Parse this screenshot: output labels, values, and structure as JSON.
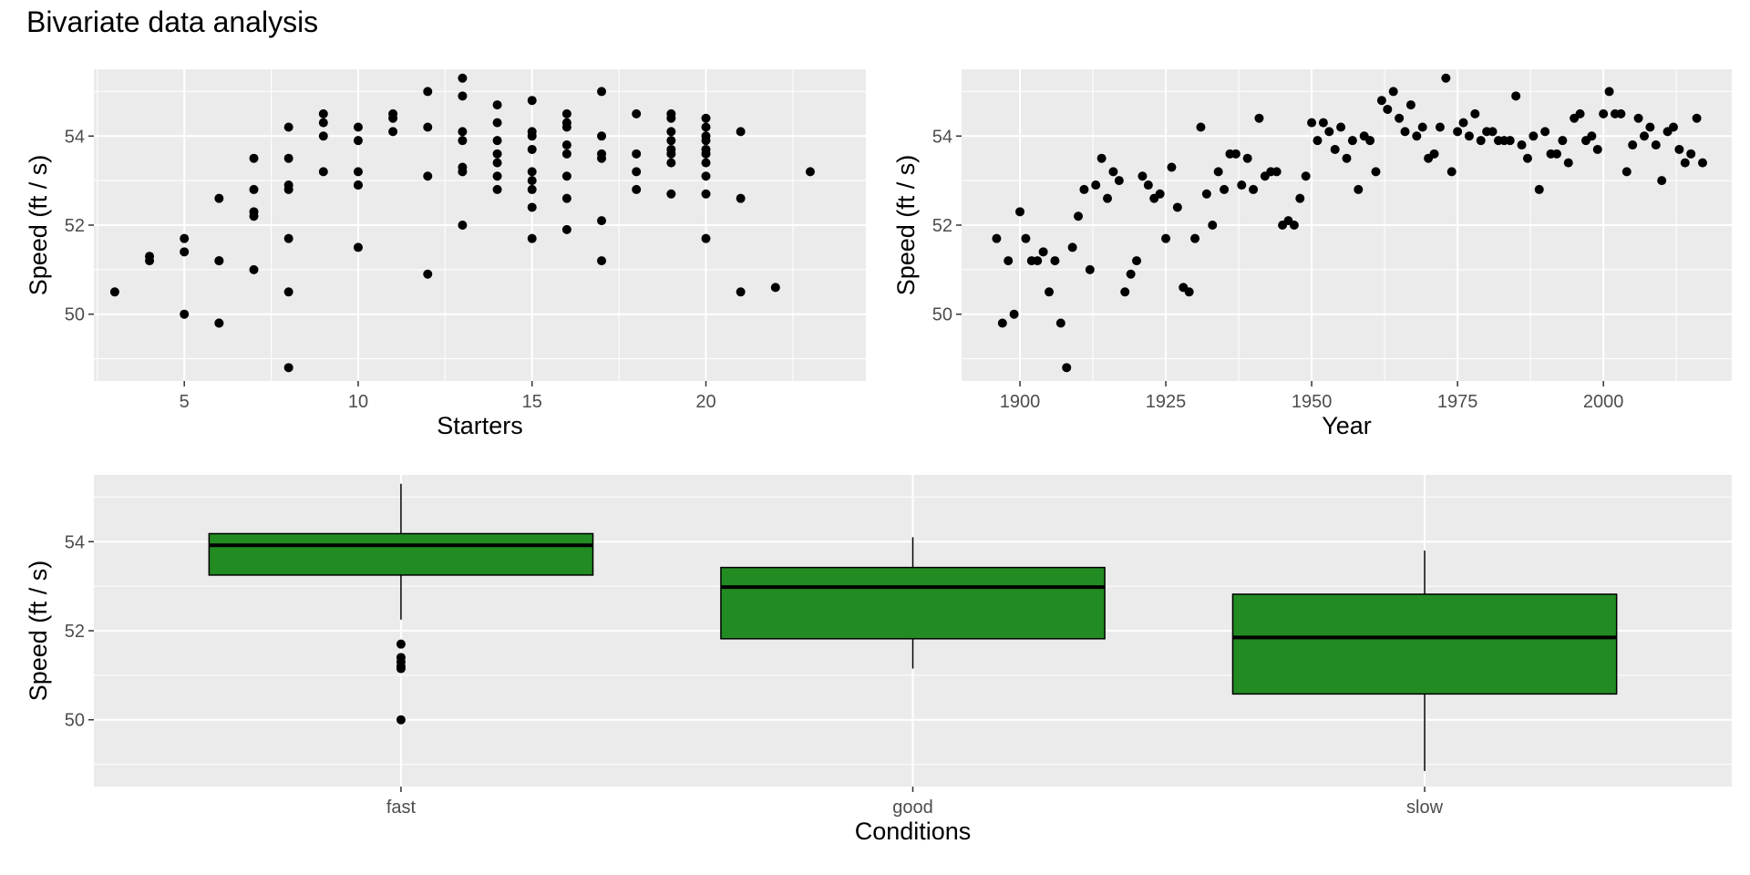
{
  "title": "Bivariate data analysis",
  "colors": {
    "panel_bg": "#EBEBEB",
    "grid": "#FFFFFF",
    "point": "#000000",
    "box_fill": "#228B22",
    "box_stroke": "#000000",
    "tick_text": "#4D4D4D"
  },
  "chart_data": [
    {
      "type": "scatter",
      "xlabel": "Starters",
      "ylabel": "Speed (ft / s)",
      "xlim": [
        2.4,
        24.6
      ],
      "ylim": [
        48.5,
        55.5
      ],
      "xticks": [
        5,
        10,
        15,
        20
      ],
      "yticks": [
        50,
        52,
        54
      ],
      "grid": true,
      "points": [
        [
          3,
          50.5
        ],
        [
          4,
          51.3
        ],
        [
          4,
          51.2
        ],
        [
          5,
          51.7
        ],
        [
          5,
          51.4
        ],
        [
          5,
          50.0
        ],
        [
          6,
          52.6
        ],
        [
          6,
          51.2
        ],
        [
          6,
          51.2
        ],
        [
          6,
          49.8
        ],
        [
          6,
          49.8
        ],
        [
          7,
          53.5
        ],
        [
          7,
          52.8
        ],
        [
          7,
          52.3
        ],
        [
          7,
          52.2
        ],
        [
          7,
          51.0
        ],
        [
          8,
          54.2
        ],
        [
          8,
          53.5
        ],
        [
          8,
          52.9
        ],
        [
          8,
          52.8
        ],
        [
          8,
          51.7
        ],
        [
          8,
          50.5
        ],
        [
          8,
          48.8
        ],
        [
          9,
          54.5
        ],
        [
          9,
          54.3
        ],
        [
          9,
          54.0
        ],
        [
          9,
          53.2
        ],
        [
          10,
          54.2
        ],
        [
          10,
          53.9
        ],
        [
          10,
          53.2
        ],
        [
          10,
          52.9
        ],
        [
          10,
          52.9
        ],
        [
          10,
          51.5
        ],
        [
          11,
          54.5
        ],
        [
          11,
          54.4
        ],
        [
          11,
          54.1
        ],
        [
          12,
          55.0
        ],
        [
          12,
          54.2
        ],
        [
          12,
          53.1
        ],
        [
          12,
          50.9
        ],
        [
          13,
          55.3
        ],
        [
          13,
          54.9
        ],
        [
          13,
          54.1
        ],
        [
          13,
          53.9
        ],
        [
          13,
          53.3
        ],
        [
          13,
          53.2
        ],
        [
          13,
          52.0
        ],
        [
          14,
          54.7
        ],
        [
          14,
          54.3
        ],
        [
          14,
          53.9
        ],
        [
          14,
          53.6
        ],
        [
          14,
          53.4
        ],
        [
          14,
          53.1
        ],
        [
          14,
          52.8
        ],
        [
          15,
          54.8
        ],
        [
          15,
          54.1
        ],
        [
          15,
          54.0
        ],
        [
          15,
          53.7
        ],
        [
          15,
          53.2
        ],
        [
          15,
          53.0
        ],
        [
          15,
          52.8
        ],
        [
          15,
          52.4
        ],
        [
          15,
          51.7
        ],
        [
          16,
          54.5
        ],
        [
          16,
          54.3
        ],
        [
          16,
          54.2
        ],
        [
          16,
          53.8
        ],
        [
          16,
          53.6
        ],
        [
          16,
          53.1
        ],
        [
          16,
          52.6
        ],
        [
          16,
          51.9
        ],
        [
          17,
          55.0
        ],
        [
          17,
          54.0
        ],
        [
          17,
          53.6
        ],
        [
          17,
          53.5
        ],
        [
          17,
          52.1
        ],
        [
          17,
          51.2
        ],
        [
          18,
          54.5
        ],
        [
          18,
          53.6
        ],
        [
          18,
          53.2
        ],
        [
          18,
          52.8
        ],
        [
          19,
          54.5
        ],
        [
          19,
          54.4
        ],
        [
          19,
          54.1
        ],
        [
          19,
          53.9
        ],
        [
          19,
          53.7
        ],
        [
          19,
          53.6
        ],
        [
          19,
          53.4
        ],
        [
          19,
          52.7
        ],
        [
          20,
          54.4
        ],
        [
          20,
          54.2
        ],
        [
          20,
          54.0
        ],
        [
          20,
          53.9
        ],
        [
          20,
          53.7
        ],
        [
          20,
          53.6
        ],
        [
          20,
          53.4
        ],
        [
          20,
          53.1
        ],
        [
          20,
          52.7
        ],
        [
          20,
          51.7
        ],
        [
          21,
          54.1
        ],
        [
          21,
          52.6
        ],
        [
          21,
          50.5
        ],
        [
          22,
          50.6
        ],
        [
          23,
          53.2
        ]
      ]
    },
    {
      "type": "scatter",
      "xlabel": "Year",
      "ylabel": "Speed (ft / s)",
      "xlim": [
        1890,
        2022
      ],
      "ylim": [
        48.5,
        55.5
      ],
      "xticks": [
        1900,
        1925,
        1950,
        1975,
        2000
      ],
      "yticks": [
        50,
        52,
        54
      ],
      "grid": true,
      "points": [
        [
          1896,
          51.7
        ],
        [
          1897,
          49.8
        ],
        [
          1898,
          51.2
        ],
        [
          1899,
          50.0
        ],
        [
          1900,
          52.3
        ],
        [
          1901,
          51.7
        ],
        [
          1902,
          51.2
        ],
        [
          1903,
          51.2
        ],
        [
          1904,
          51.4
        ],
        [
          1905,
          50.5
        ],
        [
          1906,
          51.2
        ],
        [
          1907,
          49.8
        ],
        [
          1908,
          48.8
        ],
        [
          1909,
          51.5
        ],
        [
          1910,
          52.2
        ],
        [
          1911,
          52.8
        ],
        [
          1912,
          51.0
        ],
        [
          1913,
          52.9
        ],
        [
          1914,
          53.5
        ],
        [
          1915,
          52.6
        ],
        [
          1916,
          53.2
        ],
        [
          1917,
          53.0
        ],
        [
          1918,
          50.5
        ],
        [
          1919,
          50.9
        ],
        [
          1920,
          51.2
        ],
        [
          1921,
          53.1
        ],
        [
          1922,
          52.9
        ],
        [
          1923,
          52.6
        ],
        [
          1924,
          52.7
        ],
        [
          1925,
          51.7
        ],
        [
          1926,
          53.3
        ],
        [
          1927,
          52.4
        ],
        [
          1928,
          50.6
        ],
        [
          1929,
          50.5
        ],
        [
          1930,
          51.7
        ],
        [
          1931,
          54.2
        ],
        [
          1932,
          52.7
        ],
        [
          1933,
          52.0
        ],
        [
          1934,
          53.2
        ],
        [
          1935,
          52.8
        ],
        [
          1936,
          53.6
        ],
        [
          1937,
          53.6
        ],
        [
          1938,
          52.9
        ],
        [
          1939,
          53.5
        ],
        [
          1940,
          52.8
        ],
        [
          1941,
          54.4
        ],
        [
          1942,
          53.1
        ],
        [
          1943,
          53.2
        ],
        [
          1944,
          53.2
        ],
        [
          1945,
          52.0
        ],
        [
          1946,
          52.1
        ],
        [
          1947,
          52.0
        ],
        [
          1948,
          52.6
        ],
        [
          1949,
          53.1
        ],
        [
          1950,
          54.3
        ],
        [
          1951,
          53.9
        ],
        [
          1952,
          54.3
        ],
        [
          1953,
          54.1
        ],
        [
          1954,
          53.7
        ],
        [
          1955,
          54.2
        ],
        [
          1956,
          53.5
        ],
        [
          1957,
          53.9
        ],
        [
          1958,
          52.8
        ],
        [
          1959,
          54.0
        ],
        [
          1960,
          53.9
        ],
        [
          1961,
          53.2
        ],
        [
          1962,
          54.8
        ],
        [
          1963,
          54.6
        ],
        [
          1964,
          55.0
        ],
        [
          1965,
          54.4
        ],
        [
          1966,
          54.1
        ],
        [
          1967,
          54.7
        ],
        [
          1968,
          54.0
        ],
        [
          1969,
          54.2
        ],
        [
          1970,
          53.5
        ],
        [
          1971,
          53.6
        ],
        [
          1972,
          54.2
        ],
        [
          1973,
          55.3
        ],
        [
          1974,
          53.2
        ],
        [
          1975,
          54.1
        ],
        [
          1976,
          54.3
        ],
        [
          1977,
          54.0
        ],
        [
          1978,
          54.5
        ],
        [
          1979,
          53.9
        ],
        [
          1980,
          54.1
        ],
        [
          1981,
          54.1
        ],
        [
          1982,
          53.9
        ],
        [
          1983,
          53.9
        ],
        [
          1984,
          53.9
        ],
        [
          1985,
          54.9
        ],
        [
          1986,
          53.8
        ],
        [
          1987,
          53.5
        ],
        [
          1988,
          54.0
        ],
        [
          1989,
          52.8
        ],
        [
          1990,
          54.1
        ],
        [
          1991,
          53.6
        ],
        [
          1992,
          53.6
        ],
        [
          1993,
          53.9
        ],
        [
          1994,
          53.4
        ],
        [
          1995,
          54.4
        ],
        [
          1996,
          54.5
        ],
        [
          1997,
          53.9
        ],
        [
          1998,
          54.0
        ],
        [
          1999,
          53.7
        ],
        [
          2000,
          54.5
        ],
        [
          2001,
          55.0
        ],
        [
          2002,
          54.5
        ],
        [
          2003,
          54.5
        ],
        [
          2004,
          53.2
        ],
        [
          2005,
          53.8
        ],
        [
          2006,
          54.4
        ],
        [
          2007,
          54.0
        ],
        [
          2008,
          54.2
        ],
        [
          2009,
          53.8
        ],
        [
          2010,
          53.0
        ],
        [
          2011,
          54.1
        ],
        [
          2012,
          54.2
        ],
        [
          2013,
          53.7
        ],
        [
          2014,
          53.4
        ],
        [
          2015,
          53.6
        ],
        [
          2016,
          54.4
        ],
        [
          2017,
          53.4
        ]
      ]
    },
    {
      "type": "box",
      "xlabel": "Conditions",
      "ylabel": "Speed (ft / s)",
      "ylim": [
        48.5,
        55.5
      ],
      "yticks": [
        50,
        52,
        54
      ],
      "grid": true,
      "categories": [
        "fast",
        "good",
        "slow"
      ],
      "boxes": [
        {
          "min": 52.25,
          "q1": 53.25,
          "median": 53.92,
          "q3": 54.18,
          "max": 55.3,
          "outliers": [
            51.7,
            51.4,
            51.3,
            51.2,
            51.15,
            50.0
          ]
        },
        {
          "min": 51.15,
          "q1": 51.82,
          "median": 52.98,
          "q3": 53.42,
          "max": 54.1,
          "outliers": []
        },
        {
          "min": 48.85,
          "q1": 50.58,
          "median": 51.85,
          "q3": 52.82,
          "max": 53.8,
          "outliers": []
        }
      ]
    }
  ]
}
